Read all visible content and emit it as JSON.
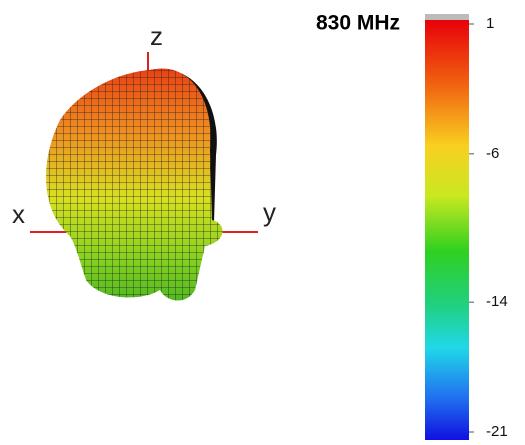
{
  "chart_data": {
    "type": "radiation-pattern",
    "title": "830 MHz",
    "axis_labels": {
      "x": "x",
      "y": "y",
      "z": "z"
    },
    "colorbar": {
      "clim": [
        -21,
        1
      ],
      "ticks": [
        1,
        -6,
        -14,
        -21
      ]
    }
  }
}
